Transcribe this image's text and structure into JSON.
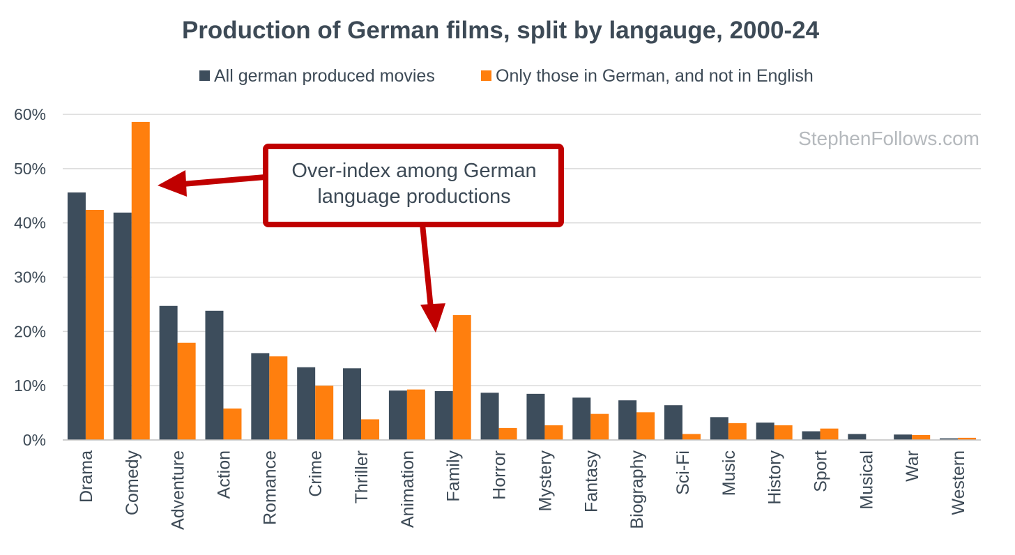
{
  "chart_data": {
    "type": "bar",
    "title": "Production of German films, split by langauge, 2000-24",
    "xlabel": "",
    "ylabel": "",
    "ylim": [
      0,
      60
    ],
    "yticks": [
      "0%",
      "10%",
      "20%",
      "30%",
      "40%",
      "50%",
      "60%"
    ],
    "grid": true,
    "legend_position": "top-center",
    "categories": [
      "Drama",
      "Comedy",
      "Adventure",
      "Action",
      "Romance",
      "Crime",
      "Thriller",
      "Animation",
      "Family",
      "Horror",
      "Mystery",
      "Fantasy",
      "Biography",
      "Sci-Fi",
      "Music",
      "History",
      "Sport",
      "Musical",
      "War",
      "Western"
    ],
    "series": [
      {
        "name": "All german produced movies",
        "color": "#3d4d5c",
        "values": [
          45.6,
          41.9,
          24.7,
          23.8,
          16.0,
          13.4,
          13.2,
          9.1,
          9.0,
          8.7,
          8.5,
          7.8,
          7.3,
          6.4,
          4.2,
          3.2,
          1.6,
          1.1,
          1.0,
          0.3
        ]
      },
      {
        "name": "Only those in German, and not in English",
        "color": "#ff7f0e",
        "values": [
          42.4,
          58.6,
          17.9,
          5.8,
          15.4,
          10.0,
          3.8,
          9.3,
          23.0,
          2.2,
          2.7,
          4.8,
          5.1,
          1.1,
          3.1,
          2.7,
          2.1,
          0.0,
          0.9,
          0.4
        ]
      }
    ],
    "annotation": {
      "lines": [
        "Over-index among German",
        "language productions"
      ],
      "color": "#c00000"
    },
    "watermark": "StephenFollows.com"
  }
}
